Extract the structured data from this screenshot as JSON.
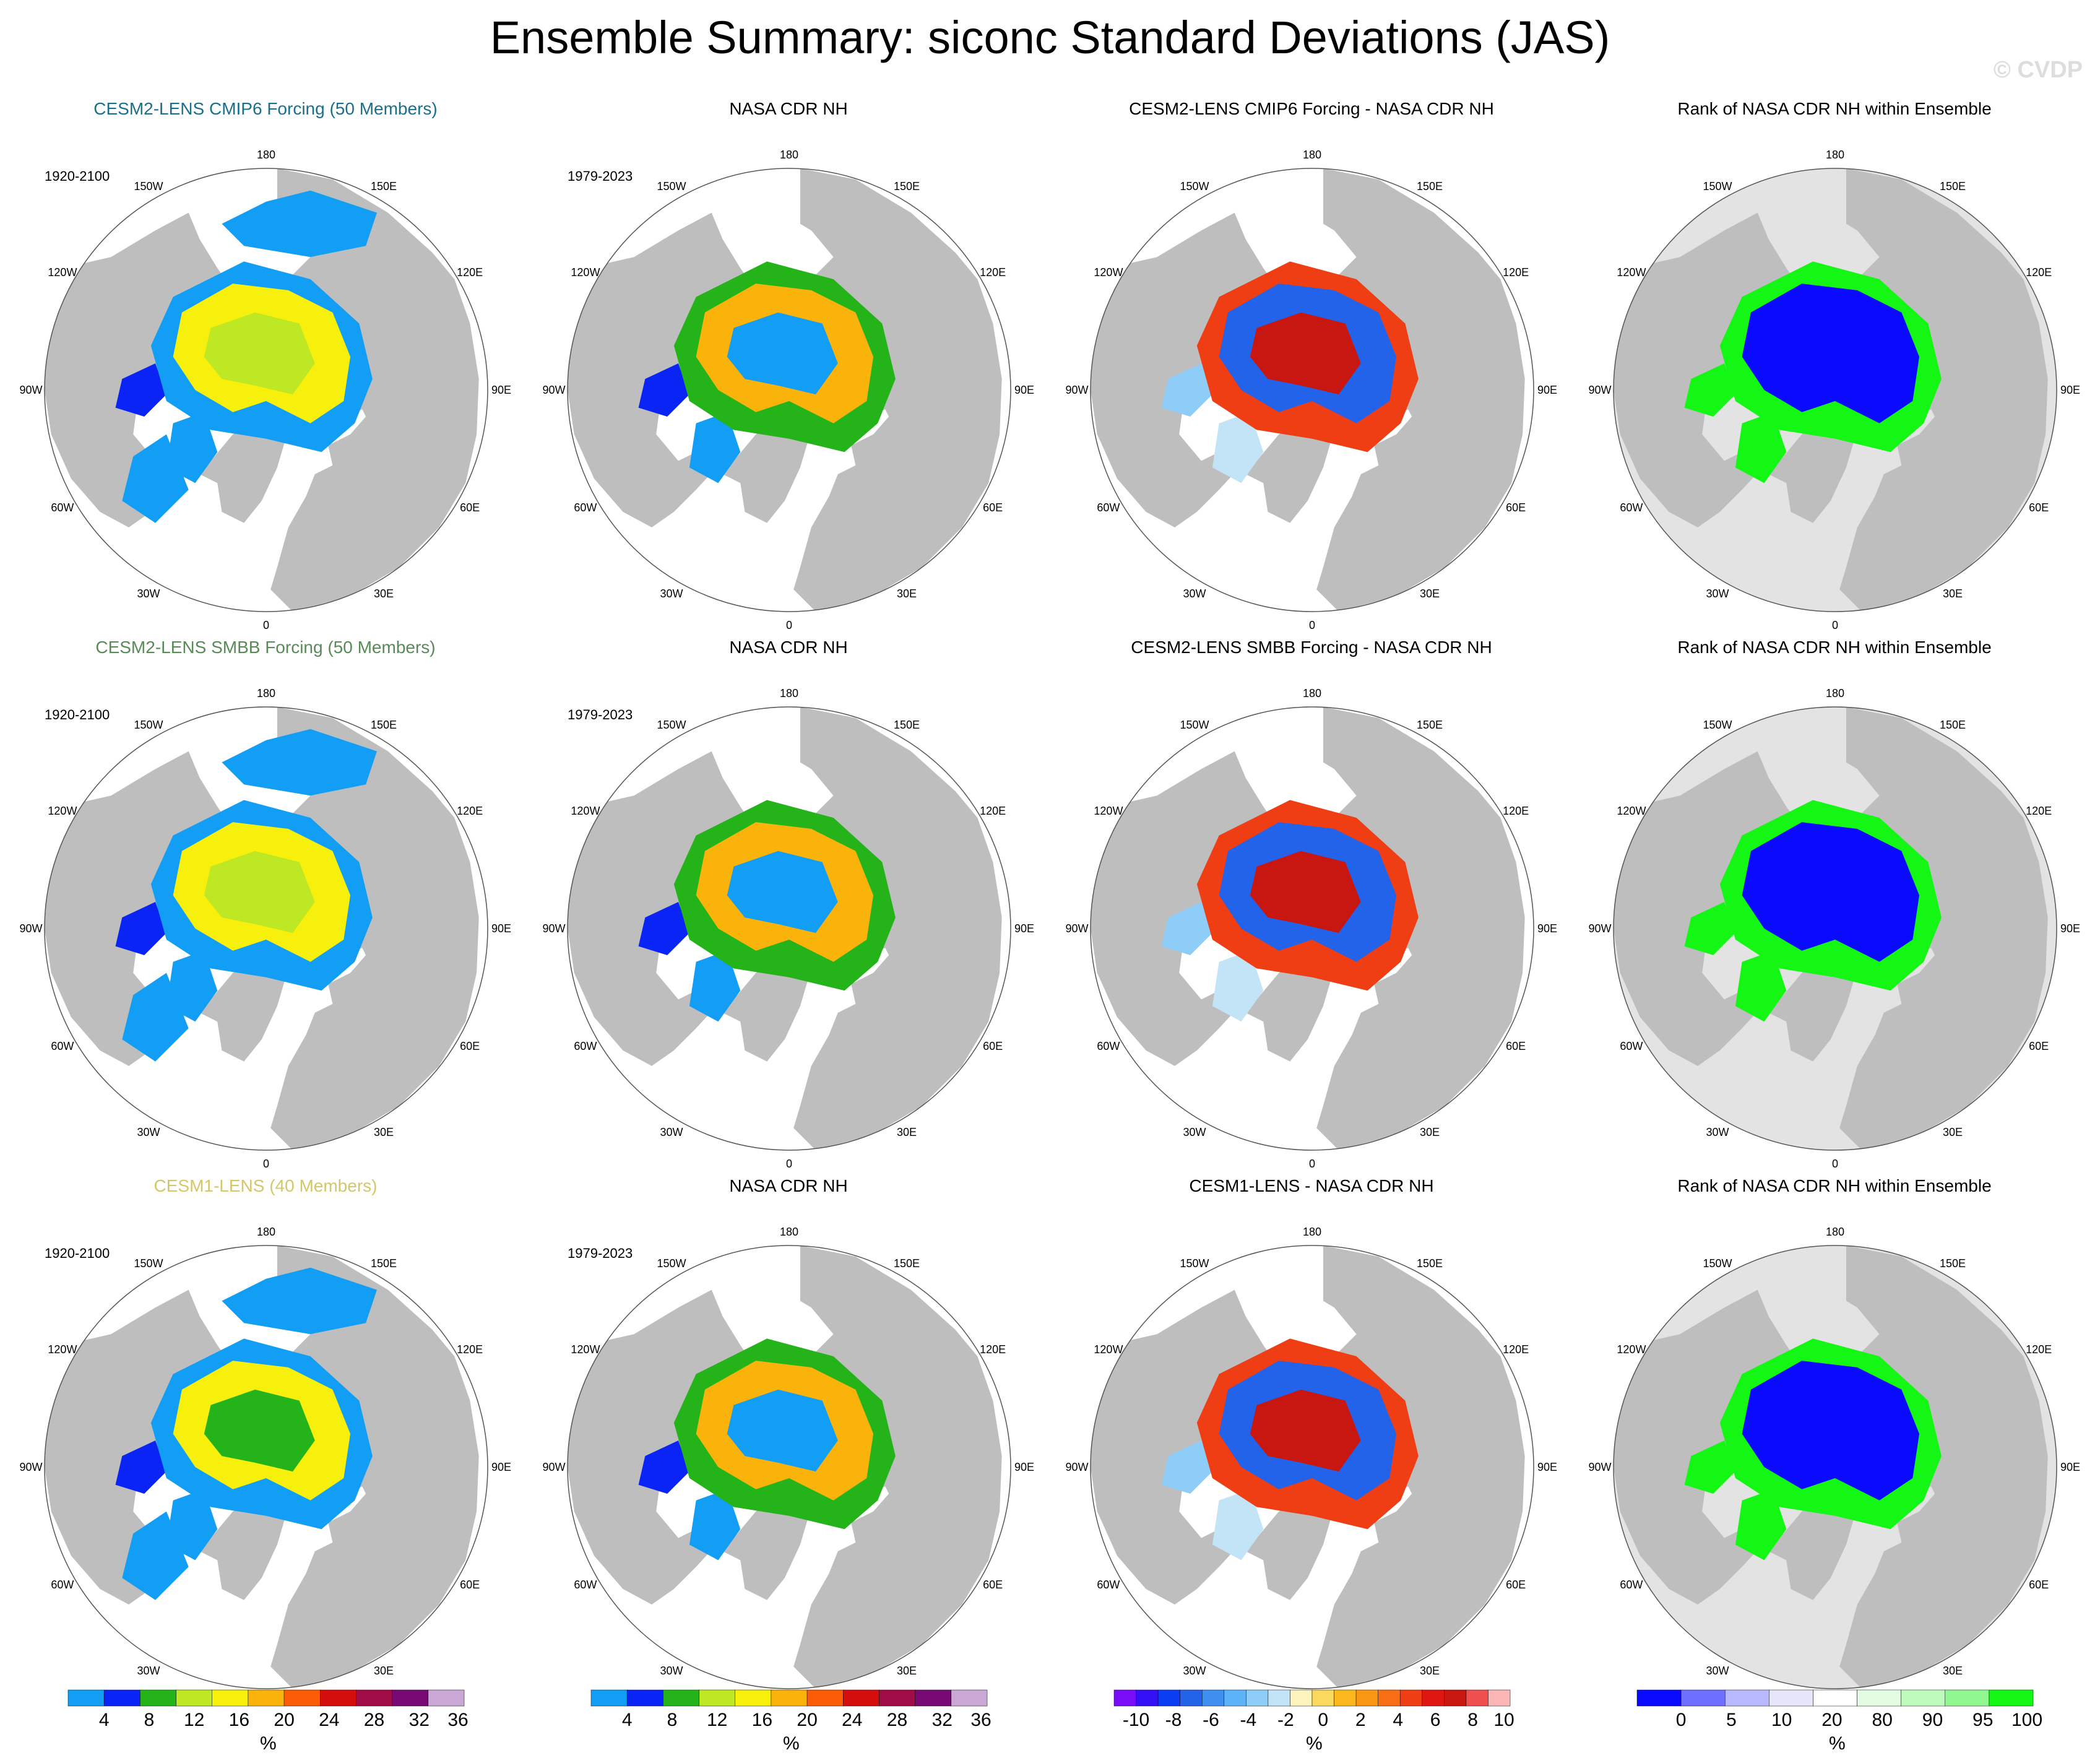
{
  "title": "Ensemble Summary: siconc Standard Deviations (JAS)",
  "watermark": "© CVDP",
  "colors": {
    "land": "#bebebe",
    "ocean": "#ffffff",
    "std_scale": [
      "#129ef4",
      "#0a24f6",
      "#24b41a",
      "#bde823",
      "#f7ef0c",
      "#fab30b",
      "#fb5a06",
      "#d40d0d",
      "#a00c45",
      "#760a72",
      "#c9a8d6"
    ],
    "diff_scale": [
      "#7a0df7",
      "#3311f7",
      "#0a3df2",
      "#2363ea",
      "#3f8ff0",
      "#5db3f8",
      "#8dcdf8",
      "#c3e3f7",
      "#fcf3bd",
      "#fbd95e",
      "#fbb81d",
      "#f99714",
      "#f76e14",
      "#ef3d14",
      "#df1713",
      "#c81611",
      "#ef4f4f",
      "#fbb6b6"
    ],
    "rank_scale": [
      "#0a0aff",
      "#6f6fff",
      "#b8b8ff",
      "#e5e5fa",
      "#ffffff",
      "#e3fde3",
      "#bdfbbd",
      "#91f891",
      "#14f714"
    ],
    "title_row1": "#1a6f8f",
    "title_row2": "#5a8a5a",
    "title_row3": "#d4c66a"
  },
  "rows": [
    {
      "ensemble": {
        "title": "CESM2-LENS CMIP6 Forcing (50 Members)",
        "period": "1920-2100"
      },
      "obs": {
        "title": "NASA CDR NH",
        "period": "1979-2023"
      },
      "diff": {
        "title": "CESM2-LENS CMIP6 Forcing - NASA CDR NH"
      },
      "rank": {
        "title": "Rank of NASA CDR NH within Ensemble"
      }
    },
    {
      "ensemble": {
        "title": "CESM2-LENS SMBB Forcing (50 Members)",
        "period": "1920-2100"
      },
      "obs": {
        "title": "NASA CDR NH",
        "period": "1979-2023"
      },
      "diff": {
        "title": "CESM2-LENS SMBB Forcing - NASA CDR NH"
      },
      "rank": {
        "title": "Rank of NASA CDR NH within Ensemble"
      }
    },
    {
      "ensemble": {
        "title": "CESM1-LENS (40 Members)",
        "period": "1920-2100"
      },
      "obs": {
        "title": "NASA CDR NH",
        "period": "1979-2023"
      },
      "diff": {
        "title": "CESM1-LENS - NASA CDR NH"
      },
      "rank": {
        "title": "Rank of NASA CDR NH within Ensemble"
      }
    }
  ],
  "longitude_labels": [
    "180",
    "150E",
    "120E",
    "90E",
    "60E",
    "30E",
    "0",
    "30W",
    "60W",
    "90W",
    "120W",
    "150W"
  ],
  "colorbars": {
    "std": {
      "units": "%",
      "labels": [
        "4",
        "8",
        "12",
        "16",
        "20",
        "24",
        "28",
        "32",
        "36"
      ]
    },
    "diff": {
      "units": "%",
      "labels": [
        "-10",
        "-8",
        "-6",
        "-4",
        "-2",
        "0",
        "2",
        "4",
        "6",
        "8",
        "10"
      ]
    },
    "rank": {
      "units": "%",
      "labels": [
        "0",
        "5",
        "10",
        "20",
        "80",
        "90",
        "95",
        "100"
      ]
    }
  }
}
